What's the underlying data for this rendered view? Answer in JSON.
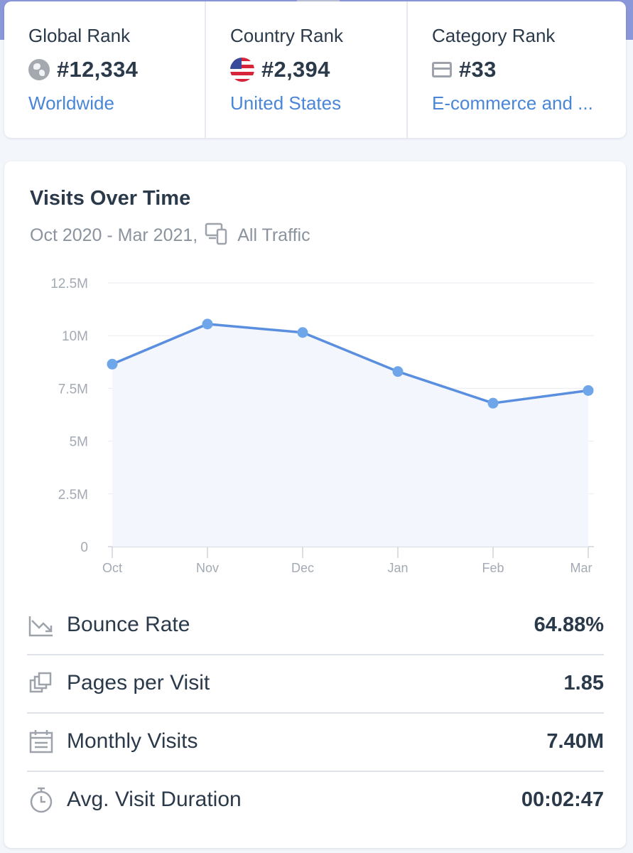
{
  "ranks": [
    {
      "title": "Global Rank",
      "value": "#12,334",
      "link": "Worldwide",
      "icon": "globe-icon"
    },
    {
      "title": "Country Rank",
      "value": "#2,394",
      "link": "United States",
      "icon": "us-flag-icon"
    },
    {
      "title": "Category Rank",
      "value": "#33",
      "link": "E-commerce and ...",
      "icon": "category-icon"
    }
  ],
  "visits": {
    "title": "Visits Over Time",
    "date_range": "Oct 2020 - Mar 2021,",
    "traffic": "All Traffic"
  },
  "chart_data": {
    "type": "area",
    "title": "Visits Over Time",
    "categories": [
      "Oct",
      "Nov",
      "Dec",
      "Jan",
      "Feb",
      "Mar"
    ],
    "series": [
      {
        "values": [
          8650000,
          10550000,
          10150000,
          8300000,
          6800000,
          7400000
        ]
      }
    ],
    "y_ticks": [
      "0",
      "2.5M",
      "5M",
      "7.5M",
      "10M",
      "12.5M"
    ],
    "ylim": [
      0,
      12500000
    ],
    "grid": true,
    "colors": {
      "line": "#5a8fe0",
      "fill": "#f3f6fd",
      "point": "#6fa6ea"
    }
  },
  "metrics": [
    {
      "label": "Bounce Rate",
      "value": "64.88%",
      "icon": "bounce-trend-icon"
    },
    {
      "label": "Pages per Visit",
      "value": "1.85",
      "icon": "pages-icon"
    },
    {
      "label": "Monthly Visits",
      "value": "7.40M",
      "icon": "calendar-icon"
    },
    {
      "label": "Avg. Visit Duration",
      "value": "00:02:47",
      "icon": "stopwatch-icon"
    }
  ]
}
